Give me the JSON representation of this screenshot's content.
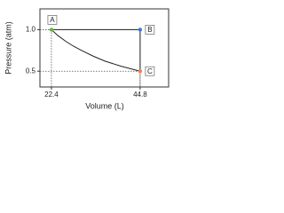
{
  "chart_data": {
    "type": "line",
    "x_label": "Volume (L)",
    "y_label": "Pressure (atm)",
    "xlim": [
      19.5,
      52
    ],
    "ylim": [
      0.31,
      1.25
    ],
    "xticks": [
      22.4,
      44.8
    ],
    "yticks": [
      0.5,
      {
        "value": 1,
        "label": "1.0"
      }
    ],
    "series": [
      {
        "color": "#222222",
        "x": [
          22.4,
          44.8,
          44.8
        ],
        "values": [
          1.0,
          1.0,
          0.5
        ]
      },
      {
        "color": "#222222",
        "x": [
          22.4,
          24,
          26,
          28,
          30,
          33,
          36,
          40,
          44.8
        ],
        "values": [
          1.0,
          0.93,
          0.86,
          0.8,
          0.75,
          0.68,
          0.62,
          0.56,
          0.5
        ]
      }
    ],
    "points": [
      {
        "label": "A",
        "x": 22.4,
        "y": 1.0,
        "color": "#6ab04c"
      },
      {
        "label": "B",
        "x": 44.8,
        "y": 1.0,
        "color": "#3a7bd5"
      },
      {
        "label": "C",
        "x": 44.8,
        "y": 0.5,
        "color": "#f08050"
      }
    ]
  }
}
